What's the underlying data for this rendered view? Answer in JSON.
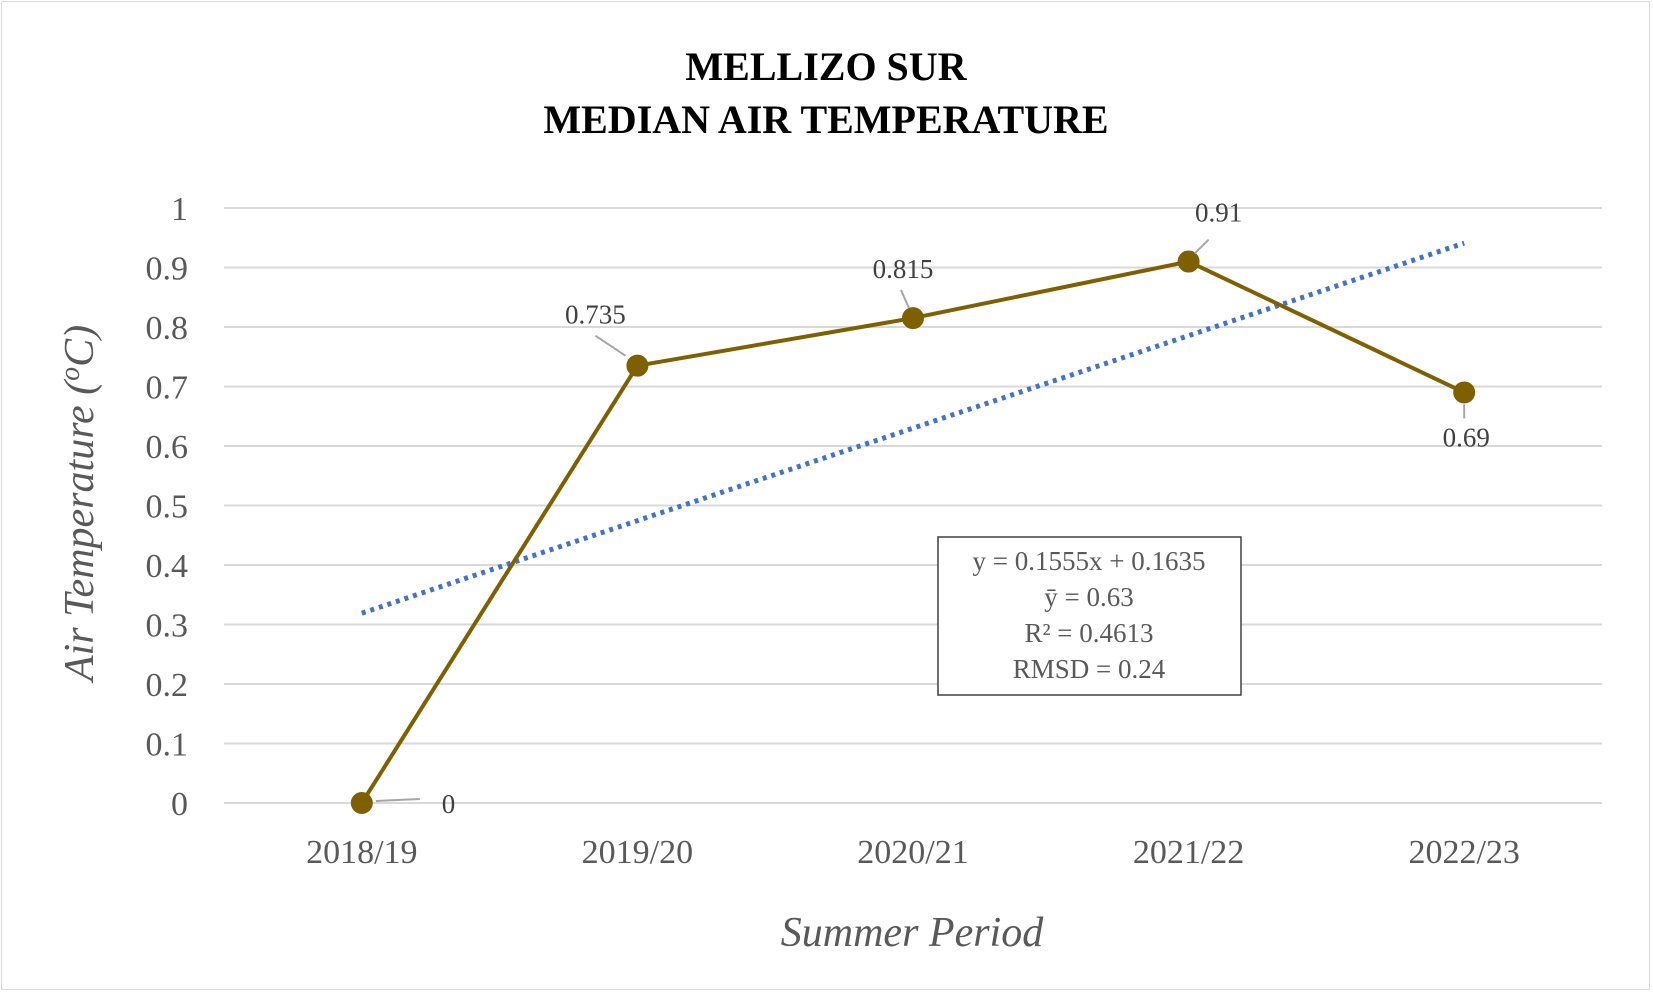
{
  "chart_data": {
    "type": "line",
    "title_lines": [
      "MELLIZO SUR",
      "MEDIAN AIR TEMPERATURE"
    ],
    "xlabel": "Summer Period",
    "ylabel_prefix": "Air Temperature (",
    "ylabel_unit_sup": "o",
    "ylabel_unit": "C)",
    "categories": [
      "2018/19",
      "2019/20",
      "2020/21",
      "2021/22",
      "2022/23"
    ],
    "series": [
      {
        "values": [
          0,
          0.735,
          0.815,
          0.91,
          0.69
        ],
        "data_labels": [
          "0",
          "0.735",
          "0.815",
          "0.91",
          "0.69"
        ],
        "color": "#7f6000",
        "marker": "circle"
      }
    ],
    "trendline": {
      "type": "linear",
      "style": "dotted",
      "color": "#4472c4",
      "slope": 0.1555,
      "intercept": 0.1635
    },
    "stats_box": [
      "y = 0.1555x + 0.1635",
      "ȳ = 0.63",
      "R² = 0.4613",
      "RMSD = 0.24"
    ],
    "yticks": [
      "0",
      "0.1",
      "0.2",
      "0.3",
      "0.4",
      "0.5",
      "0.6",
      "0.7",
      "0.8",
      "0.9",
      "1"
    ],
    "ylim": [
      0,
      1
    ],
    "grid": true,
    "legend": "none"
  }
}
